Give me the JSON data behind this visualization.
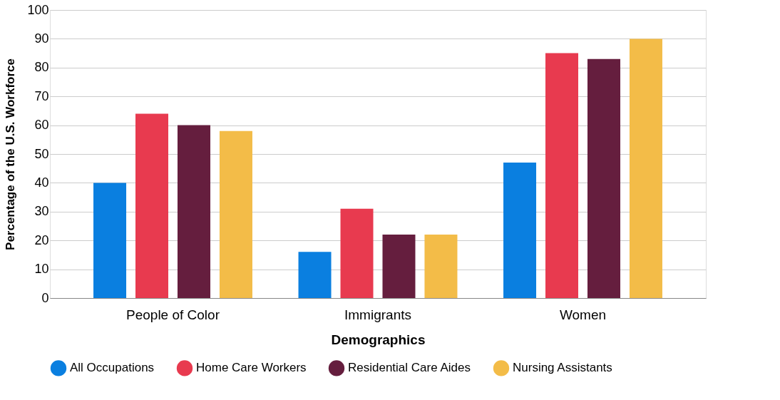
{
  "chart_data": {
    "type": "bar",
    "xlabel": "Demographics",
    "ylabel": "Percentage of the U.S. Workforce",
    "categories": [
      "People of Color",
      "Immigrants",
      "Women"
    ],
    "series": [
      {
        "name": "All Occupations",
        "color": "#0a7fe0",
        "values": [
          40,
          16,
          47
        ]
      },
      {
        "name": "Home Care Workers",
        "color": "#e83a4f",
        "values": [
          64,
          31,
          85
        ]
      },
      {
        "name": "Residential Care Aides",
        "color": "#651e3e",
        "values": [
          60,
          22,
          83
        ]
      },
      {
        "name": "Nursing Assistants",
        "color": "#f3bc48",
        "values": [
          58,
          22,
          90
        ]
      }
    ],
    "ylim": [
      0,
      100
    ],
    "yticks": [
      0,
      10,
      20,
      30,
      40,
      50,
      60,
      70,
      80,
      90,
      100
    ],
    "grid": "y",
    "legend": "bottom"
  }
}
